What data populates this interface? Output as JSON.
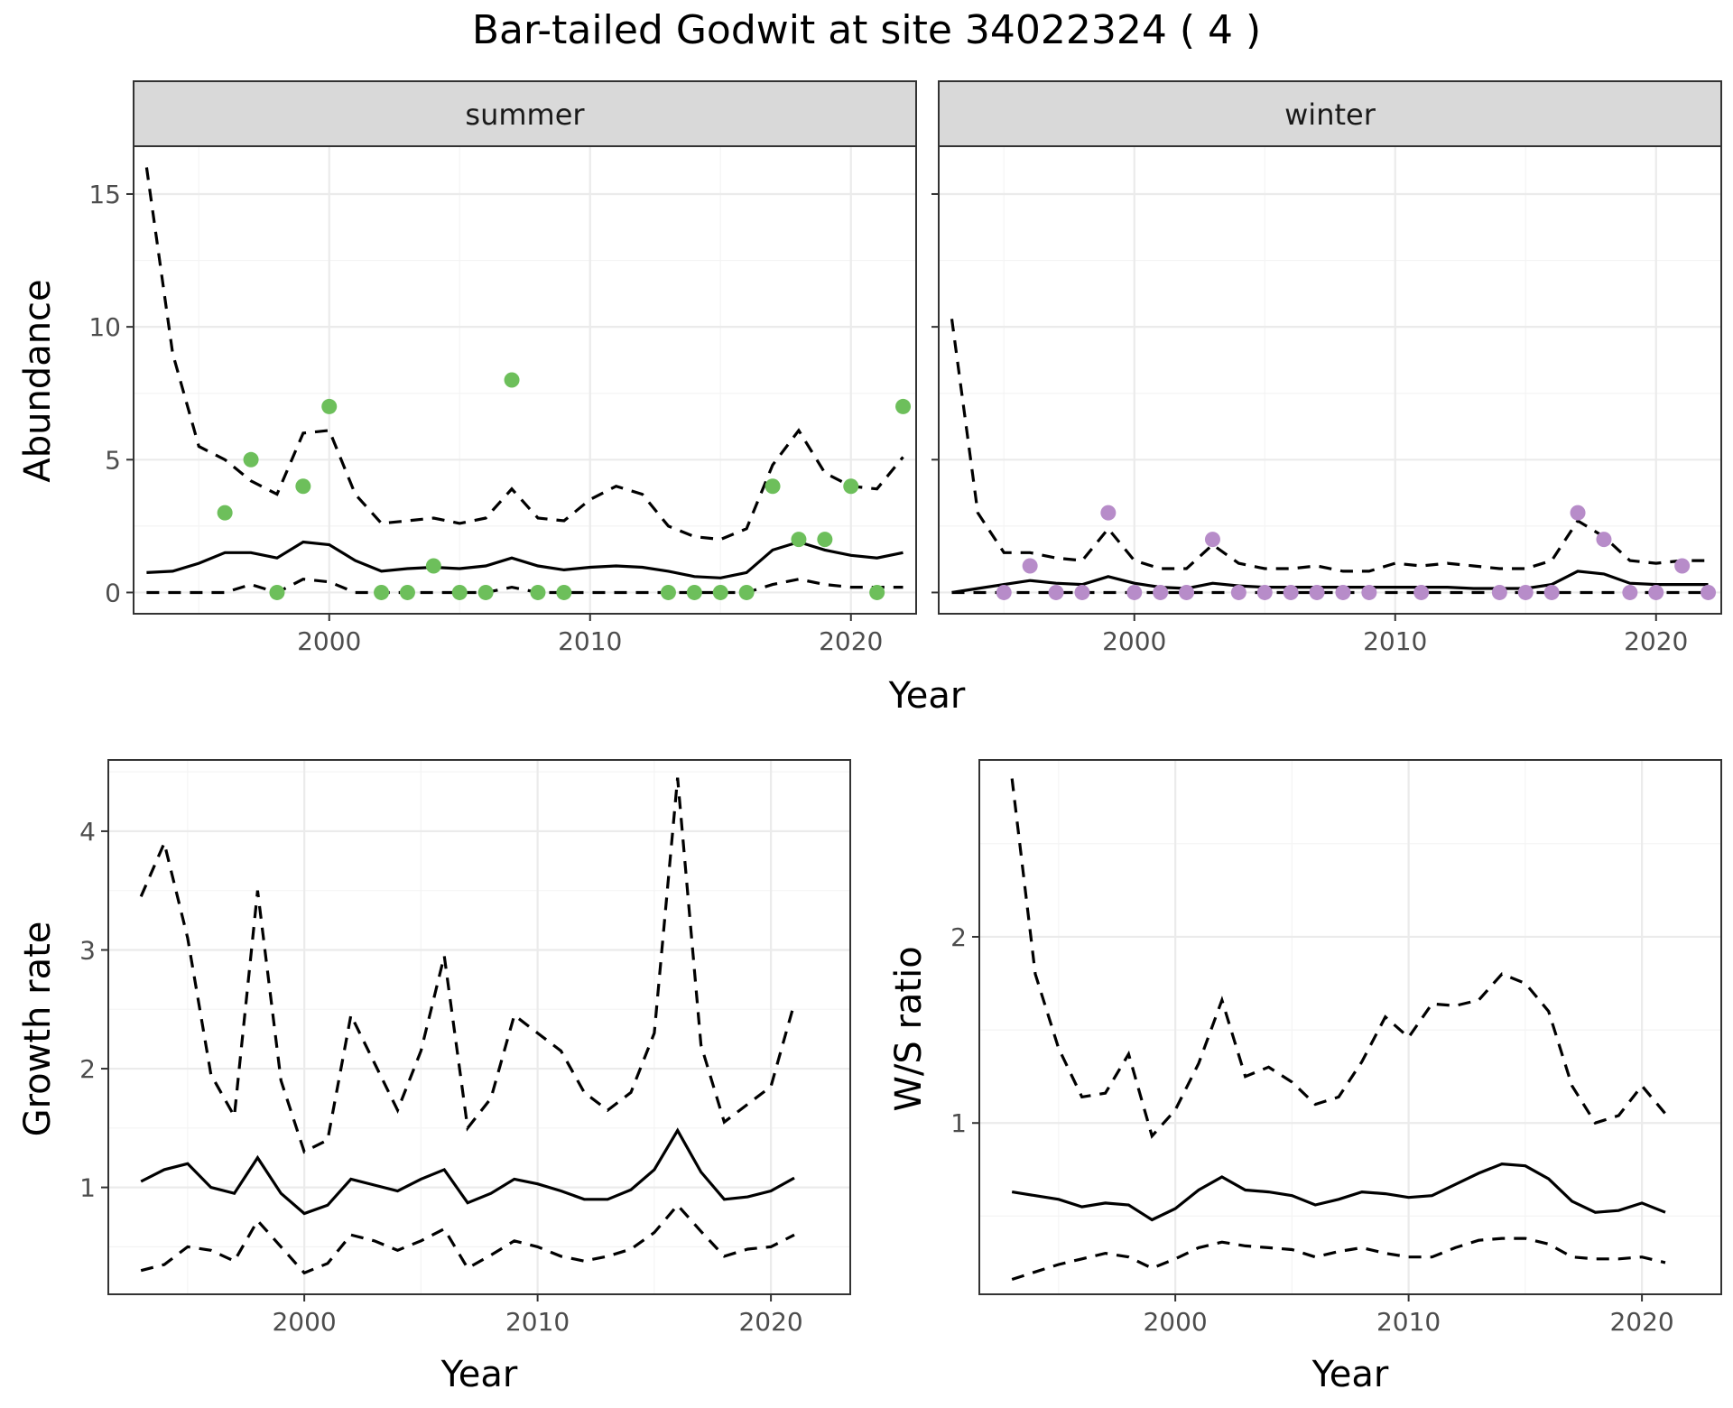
{
  "title": "Bar-tailed Godwit at site 34022324 ( 4 )",
  "colors": {
    "summer_points": "#6dbf5b",
    "winter_points": "#b78cc9",
    "lines": "#000000",
    "strip": "#d9d9d9"
  },
  "chart_data": [
    {
      "id": "abundance",
      "type": "line",
      "facets": [
        "summer",
        "winter"
      ],
      "xlabel": "Year",
      "ylabel": "Abundance",
      "xlim": [
        1992.5,
        2022.5
      ],
      "ylim": [
        -0.8,
        16.8
      ],
      "x_ticks": [
        2000,
        2010,
        2020
      ],
      "y_ticks": [
        0,
        5,
        10,
        15
      ],
      "x": [
        1993,
        1994,
        1995,
        1996,
        1997,
        1998,
        1999,
        2000,
        2001,
        2002,
        2003,
        2004,
        2005,
        2006,
        2007,
        2008,
        2009,
        2010,
        2011,
        2012,
        2013,
        2014,
        2015,
        2016,
        2017,
        2018,
        2019,
        2020,
        2021,
        2022
      ],
      "panels": {
        "summer": {
          "series": [
            {
              "role": "mean",
              "values": [
                0.75,
                0.8,
                1.1,
                1.5,
                1.5,
                1.3,
                1.9,
                1.8,
                1.2,
                0.8,
                0.9,
                0.95,
                0.9,
                1.0,
                1.3,
                1.0,
                0.85,
                0.95,
                1.0,
                0.95,
                0.8,
                0.6,
                0.55,
                0.75,
                1.6,
                1.9,
                1.6,
                1.4,
                1.3,
                1.5
              ]
            },
            {
              "role": "upper",
              "values": [
                16,
                9,
                5.5,
                5,
                4.2,
                3.7,
                6,
                6.1,
                3.7,
                2.6,
                2.7,
                2.8,
                2.6,
                2.8,
                3.9,
                2.8,
                2.7,
                3.5,
                4,
                3.7,
                2.5,
                2.1,
                2,
                2.4,
                4.8,
                6.1,
                4.5,
                4,
                3.9,
                5.1
              ]
            },
            {
              "role": "lower",
              "values": [
                0,
                0,
                0,
                0,
                0.3,
                0,
                0.5,
                0.4,
                0,
                0,
                0,
                0,
                0,
                0,
                0.2,
                0,
                0,
                0,
                0,
                0,
                0,
                0,
                0,
                0,
                0.3,
                0.5,
                0.3,
                0.2,
                0.2,
                0.2
              ]
            }
          ],
          "points": {
            "x": [
              1996,
              1997,
              1998,
              1999,
              2000,
              2002,
              2003,
              2004,
              2005,
              2006,
              2007,
              2008,
              2009,
              2013,
              2014,
              2015,
              2016,
              2017,
              2018,
              2019,
              2020,
              2021,
              2022
            ],
            "y": [
              3,
              5,
              0,
              4,
              7,
              0,
              0,
              1,
              0,
              0,
              8,
              0,
              0,
              0,
              0,
              0,
              0,
              4,
              2,
              2,
              4,
              0,
              7
            ]
          }
        },
        "winter": {
          "series": [
            {
              "role": "mean",
              "values": [
                0,
                0.15,
                0.3,
                0.45,
                0.35,
                0.3,
                0.6,
                0.35,
                0.2,
                0.15,
                0.35,
                0.25,
                0.2,
                0.2,
                0.2,
                0.2,
                0.2,
                0.2,
                0.2,
                0.2,
                0.15,
                0.15,
                0.15,
                0.3,
                0.8,
                0.7,
                0.35,
                0.3,
                0.3,
                0.3
              ]
            },
            {
              "role": "upper",
              "values": [
                10.3,
                3,
                1.5,
                1.5,
                1.3,
                1.2,
                2.4,
                1.2,
                0.9,
                0.9,
                1.8,
                1.1,
                0.9,
                0.9,
                1,
                0.8,
                0.8,
                1.1,
                1,
                1.1,
                1,
                0.9,
                0.9,
                1.2,
                2.7,
                2.1,
                1.2,
                1.1,
                1.2,
                1.2
              ]
            },
            {
              "role": "lower",
              "values": [
                0,
                0,
                0,
                0,
                0,
                0,
                0,
                0,
                0,
                0,
                0,
                0,
                0,
                0,
                0,
                0,
                0,
                0,
                0,
                0,
                0,
                0,
                0,
                0,
                0,
                0,
                0,
                0,
                0,
                0
              ]
            }
          ],
          "points": {
            "x": [
              1995,
              1996,
              1997,
              1998,
              1999,
              2000,
              2001,
              2002,
              2003,
              2004,
              2005,
              2006,
              2007,
              2008,
              2009,
              2011,
              2014,
              2015,
              2016,
              2017,
              2018,
              2019,
              2020,
              2021,
              2022
            ],
            "y": [
              0,
              1,
              0,
              0,
              3,
              0,
              0,
              0,
              2,
              0,
              0,
              0,
              0,
              0,
              0,
              0,
              0,
              0,
              0,
              3,
              2,
              0,
              0,
              1,
              0
            ]
          }
        }
      }
    },
    {
      "id": "growth",
      "type": "line",
      "xlabel": "Year",
      "ylabel": "Growth rate",
      "xlim": [
        1991.6,
        2023.4
      ],
      "ylim": [
        0.1,
        4.6
      ],
      "x_ticks": [
        2000,
        2010,
        2020
      ],
      "y_ticks": [
        1,
        2,
        3,
        4
      ],
      "x": [
        1993,
        1994,
        1995,
        1996,
        1997,
        1998,
        1999,
        2000,
        2001,
        2002,
        2003,
        2004,
        2005,
        2006,
        2007,
        2008,
        2009,
        2010,
        2011,
        2012,
        2013,
        2014,
        2015,
        2016,
        2017,
        2018,
        2019,
        2020,
        2021
      ],
      "series": [
        {
          "role": "mean",
          "values": [
            1.05,
            1.15,
            1.2,
            1.0,
            0.95,
            1.25,
            0.95,
            0.78,
            0.85,
            1.07,
            1.02,
            0.97,
            1.07,
            1.15,
            0.87,
            0.95,
            1.07,
            1.03,
            0.97,
            0.9,
            0.9,
            0.98,
            1.15,
            1.48,
            1.13,
            0.9,
            0.92,
            0.97,
            1.08
          ]
        },
        {
          "role": "upper",
          "values": [
            3.45,
            3.9,
            3.1,
            1.95,
            1.6,
            3.5,
            1.9,
            1.3,
            1.4,
            2.45,
            2.05,
            1.65,
            2.15,
            2.95,
            1.5,
            1.75,
            2.45,
            2.3,
            2.15,
            1.8,
            1.65,
            1.8,
            2.3,
            4.45,
            2.2,
            1.55,
            1.7,
            1.85,
            2.55
          ]
        },
        {
          "role": "lower",
          "values": [
            0.3,
            0.35,
            0.5,
            0.47,
            0.38,
            0.72,
            0.5,
            0.28,
            0.36,
            0.6,
            0.55,
            0.47,
            0.55,
            0.65,
            0.32,
            0.43,
            0.55,
            0.5,
            0.42,
            0.38,
            0.42,
            0.48,
            0.62,
            0.85,
            0.63,
            0.42,
            0.48,
            0.5,
            0.6
          ]
        }
      ]
    },
    {
      "id": "ws_ratio",
      "type": "line",
      "xlabel": "Year",
      "ylabel": "W/S ratio",
      "xlim": [
        1991.6,
        2023.4
      ],
      "ylim": [
        0.08,
        2.95
      ],
      "x_ticks": [
        2000,
        2010,
        2020
      ],
      "y_ticks": [
        1,
        2
      ],
      "x": [
        1993,
        1994,
        1995,
        1996,
        1997,
        1998,
        1999,
        2000,
        2001,
        2002,
        2003,
        2004,
        2005,
        2006,
        2007,
        2008,
        2009,
        2010,
        2011,
        2012,
        2013,
        2014,
        2015,
        2016,
        2017,
        2018,
        2019,
        2020,
        2021
      ],
      "series": [
        {
          "role": "mean",
          "values": [
            0.63,
            0.61,
            0.59,
            0.55,
            0.57,
            0.56,
            0.48,
            0.54,
            0.64,
            0.71,
            0.64,
            0.63,
            0.61,
            0.56,
            0.59,
            0.63,
            0.62,
            0.6,
            0.61,
            0.67,
            0.73,
            0.78,
            0.77,
            0.7,
            0.58,
            0.52,
            0.53,
            0.57,
            0.52
          ]
        },
        {
          "role": "upper",
          "values": [
            2.85,
            1.8,
            1.4,
            1.14,
            1.16,
            1.37,
            0.93,
            1.07,
            1.32,
            1.66,
            1.25,
            1.3,
            1.22,
            1.1,
            1.14,
            1.33,
            1.57,
            1.46,
            1.64,
            1.63,
            1.66,
            1.8,
            1.75,
            1.6,
            1.2,
            1.0,
            1.04,
            1.2,
            1.05
          ]
        },
        {
          "role": "lower",
          "values": [
            0.16,
            0.2,
            0.24,
            0.27,
            0.3,
            0.28,
            0.22,
            0.27,
            0.33,
            0.36,
            0.34,
            0.33,
            0.32,
            0.28,
            0.31,
            0.33,
            0.3,
            0.28,
            0.28,
            0.33,
            0.37,
            0.38,
            0.38,
            0.35,
            0.28,
            0.27,
            0.27,
            0.28,
            0.25
          ]
        }
      ]
    }
  ]
}
